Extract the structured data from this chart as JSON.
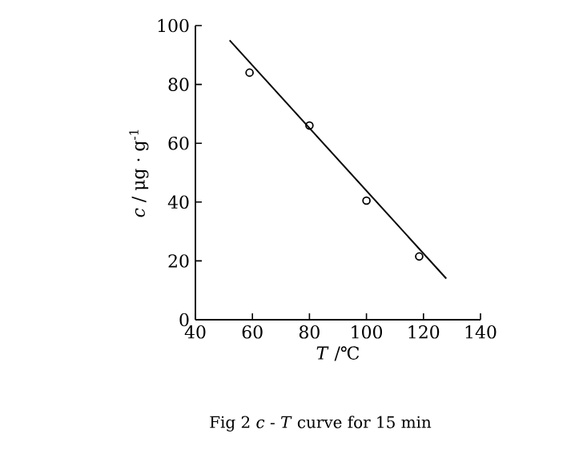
{
  "chart_data": {
    "type": "scatter",
    "xlabel": "*T* /℃",
    "ylabel": "*c* / μg · g$^{-1}$",
    "xlim": [
      40,
      140
    ],
    "xticks": [
      40,
      60,
      80,
      100,
      120,
      140
    ],
    "ylim": [
      0,
      100
    ],
    "yticks": [
      0,
      20,
      40,
      60,
      80,
      100
    ],
    "grid": false,
    "series": [
      {
        "type": "line",
        "color": "#000000",
        "x": [
          52,
          128
        ],
        "values": [
          95,
          14
        ],
        "marker": "none",
        "line_style": "solid"
      },
      {
        "color": "#000000",
        "x": [
          59,
          80,
          100,
          118.5
        ],
        "values": [
          84,
          66,
          40.5,
          21.5
        ],
        "marker": "circle"
      }
    ],
    "annotations": [
      "Fig 2   *c* -  *T* curve for 15 min"
    ]
  }
}
